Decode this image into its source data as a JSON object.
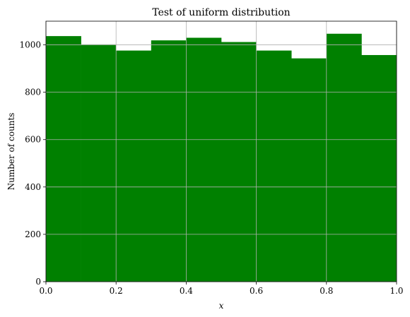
{
  "chart_data": {
    "type": "bar",
    "title": "Test of uniform distribution",
    "xlabel": "x",
    "ylabel": "Number of counts",
    "bin_edges": [
      0.0,
      0.1,
      0.2,
      0.3,
      0.4,
      0.5,
      0.6,
      0.7,
      0.8,
      0.9,
      1.0
    ],
    "values": [
      1037,
      1002,
      976,
      1019,
      1030,
      1012,
      976,
      943,
      1047,
      957
    ],
    "xlim": [
      0.0,
      1.0
    ],
    "ylim": [
      0,
      1100
    ],
    "xticks": [
      "0.0",
      "0.2",
      "0.4",
      "0.6",
      "0.8",
      "1.0"
    ],
    "xtick_values": [
      0.0,
      0.2,
      0.4,
      0.6,
      0.8,
      1.0
    ],
    "yticks": [
      "0",
      "200",
      "400",
      "600",
      "800",
      "1000"
    ],
    "ytick_values": [
      0,
      200,
      400,
      600,
      800,
      1000
    ],
    "grid": true,
    "bar_color": "#008000",
    "grid_color": "#b0b0b0"
  }
}
